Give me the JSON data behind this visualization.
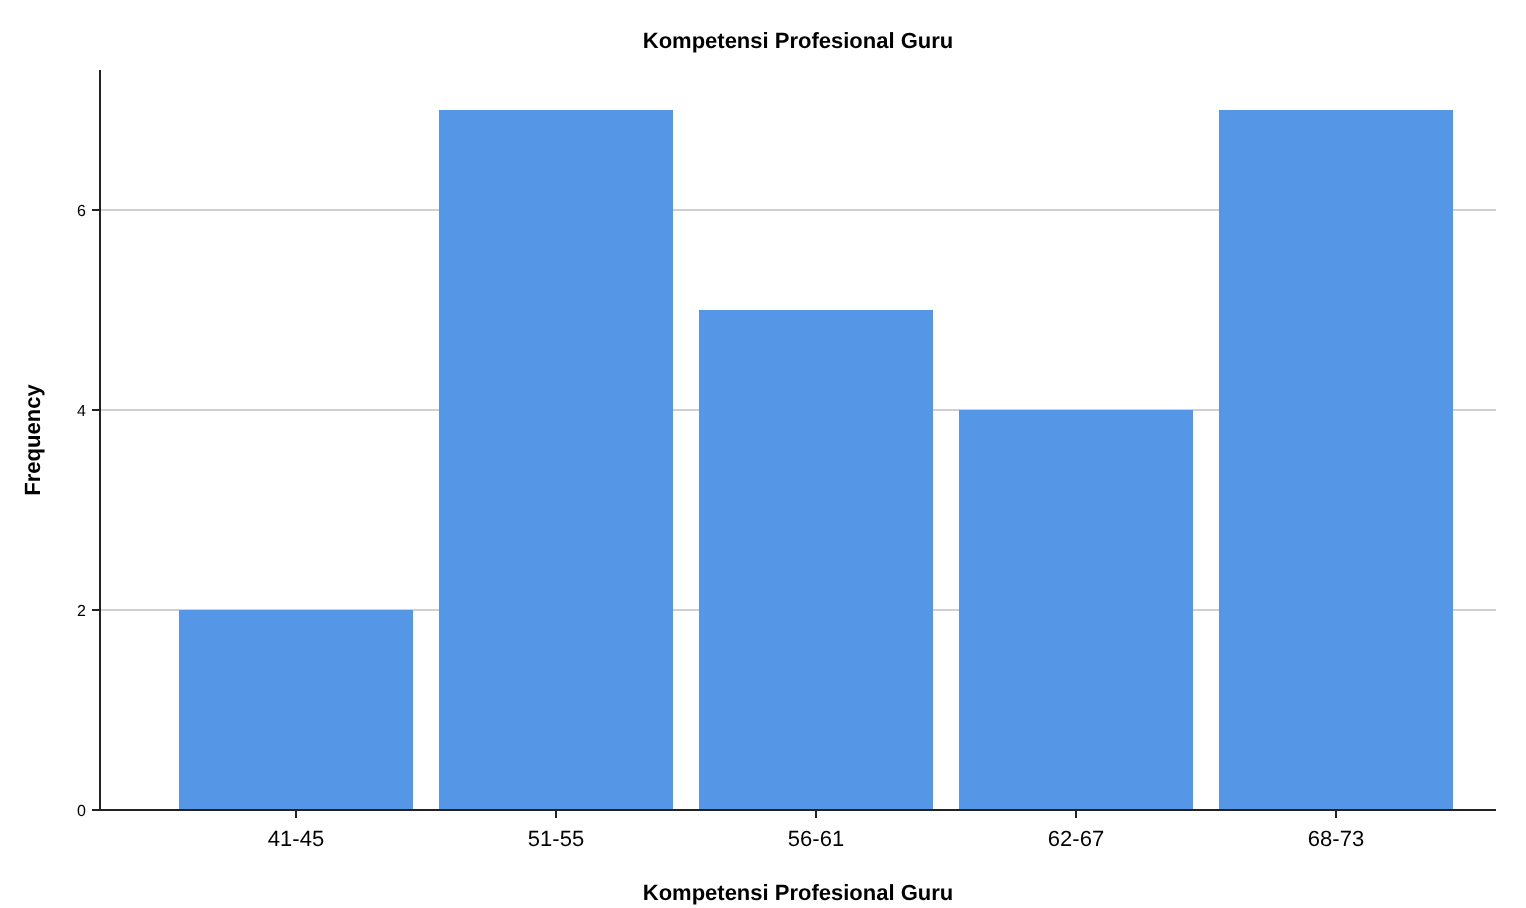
{
  "chart_data": {
    "type": "bar",
    "title": "Kompetensi Profesional Guru",
    "xlabel": "Kompetensi Profesional Guru",
    "ylabel": "Frequency",
    "categories": [
      "41-45",
      "51-55",
      "56-61",
      "62-67",
      "68-73"
    ],
    "values": [
      2,
      7,
      5,
      4,
      7
    ],
    "color": "#5596e6",
    "ylim": [
      0,
      7.4
    ],
    "yticks": [
      0,
      2,
      4,
      6
    ],
    "grid": "y"
  }
}
